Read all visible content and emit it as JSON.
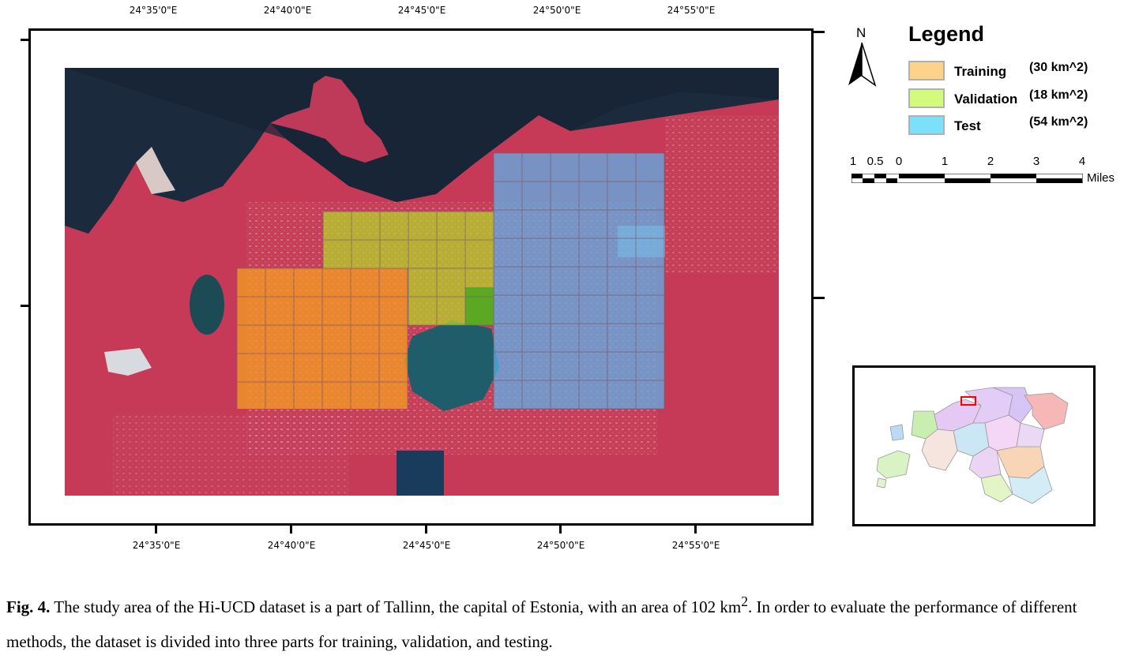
{
  "top_coords": [
    "24°35'0\"E",
    "24°40'0\"E",
    "24°45'0\"E",
    "24°50'0\"E",
    "24°55'0\"E"
  ],
  "bottom_coords": [
    "24°35'0\"E",
    "24°40'0\"E",
    "24°45'0\"E",
    "24°50'0\"E",
    "24°55'0\"E"
  ],
  "legend": {
    "title": "Legend",
    "items": [
      {
        "label": "Training",
        "area": "(30 km^2)",
        "color": "#fdd28a"
      },
      {
        "label": "Validation",
        "area": "(18 km^2)",
        "color": "#d2fa7d"
      },
      {
        "label": "Test",
        "area": "(54 km^2)",
        "color": "#7de0fb"
      }
    ]
  },
  "north_arrow": {
    "label": "N",
    "icon": "north-arrow-icon"
  },
  "scale_bar": {
    "labels": [
      "1",
      "0.5",
      "0",
      "1",
      "2",
      "3",
      "4"
    ],
    "unit": "Miles"
  },
  "overlay_colors": {
    "training": "#f5a21f",
    "validation": "#b4d82a",
    "test": "#5ab4ee"
  },
  "caption": {
    "label": "Fig. 4.",
    "text_before_sup": " The study area of the Hi-UCD dataset is a part of Tallinn, the capital of Estonia, with an area of 102 km",
    "sup": "2",
    "text_after_sup": ". In order to evaluate the performance of different methods, the dataset is divided into three parts for training, validation, and testing."
  }
}
